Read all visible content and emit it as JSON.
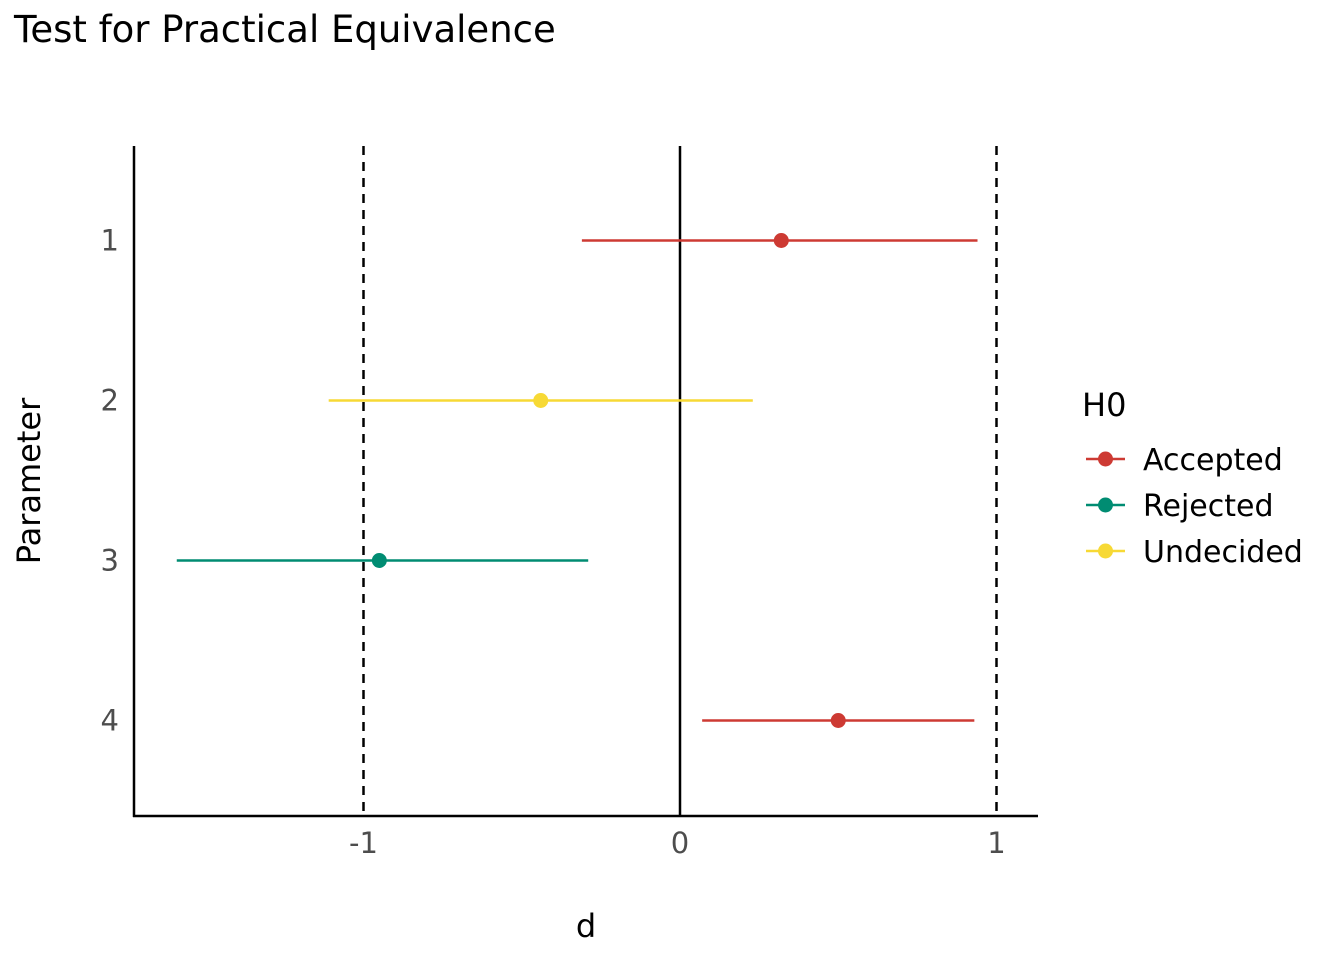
{
  "chart_data": {
    "type": "forest",
    "title": "Test for Practical Equivalence",
    "xlabel": "d",
    "ylabel": "Parameter",
    "xlim": [
      -1.72,
      1.13
    ],
    "x_ticks": [
      "-1",
      "0",
      "1"
    ],
    "x_tick_values": [
      -1,
      0,
      1
    ],
    "reference_lines": {
      "zero": 0,
      "rope": [
        -1,
        1
      ]
    },
    "categories": [
      "1",
      "2",
      "3",
      "4"
    ],
    "points": [
      {
        "parameter": "1",
        "estimate": 0.32,
        "ci_low": -0.31,
        "ci_high": 0.94,
        "h0": "Accepted"
      },
      {
        "parameter": "2",
        "estimate": -0.44,
        "ci_low": -1.11,
        "ci_high": 0.23,
        "h0": "Undecided"
      },
      {
        "parameter": "3",
        "estimate": -0.95,
        "ci_low": -1.59,
        "ci_high": -0.29,
        "h0": "Rejected"
      },
      {
        "parameter": "4",
        "estimate": 0.5,
        "ci_low": 0.07,
        "ci_high": 0.93,
        "h0": "Accepted"
      }
    ],
    "legend": {
      "title": "H0",
      "placement": "right",
      "entries": [
        {
          "label": "Accepted",
          "color": "#cd3a33"
        },
        {
          "label": "Rejected",
          "color": "#008c72"
        },
        {
          "label": "Undecided",
          "color": "#f7d935"
        }
      ]
    },
    "grid": false
  }
}
